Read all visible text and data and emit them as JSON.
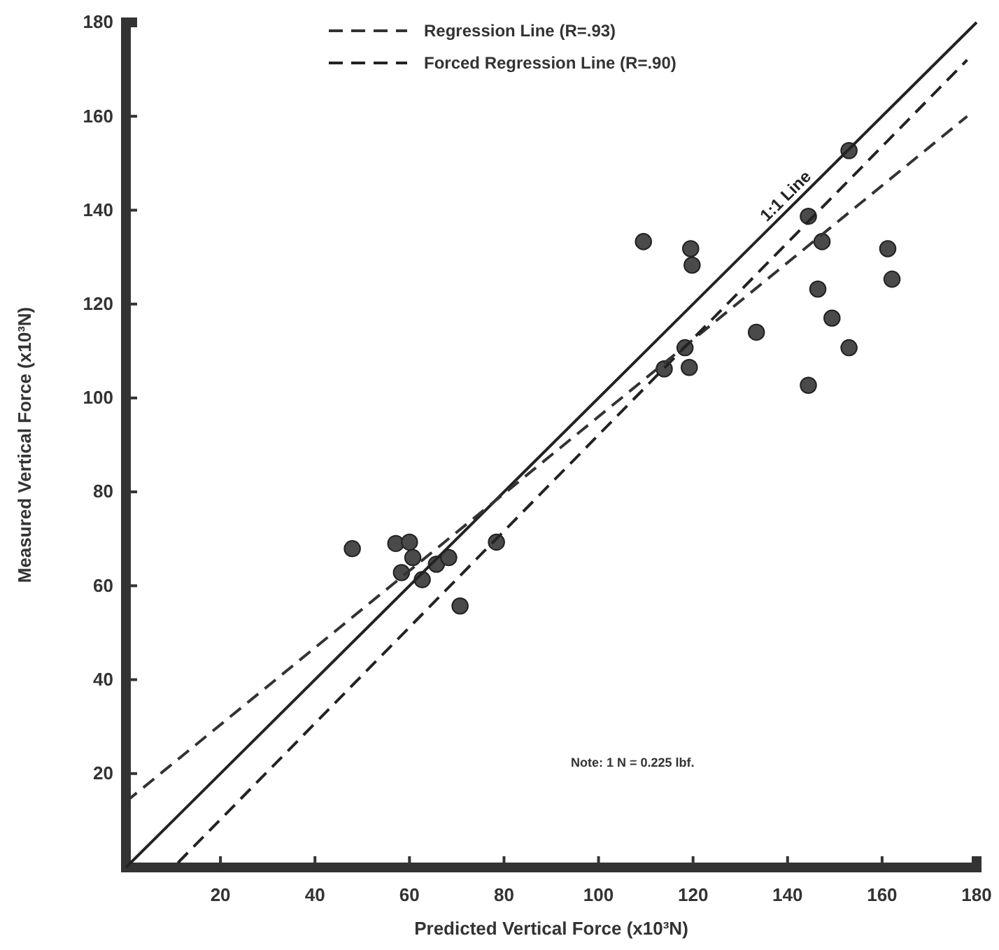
{
  "chart_data": {
    "type": "scatter",
    "xlabel": "Predicted Vertical Force (x10³N)",
    "ylabel": "Measured Vertical Force (x10³N)",
    "xlim": [
      0,
      180
    ],
    "ylim": [
      0,
      180
    ],
    "xticks": [
      20,
      40,
      60,
      80,
      100,
      120,
      140,
      160,
      180
    ],
    "yticks": [
      20,
      40,
      60,
      80,
      100,
      120,
      140,
      160,
      180
    ],
    "grid": false,
    "legend": "top",
    "annotations": [
      "Note: 1 N = 0.225 lbf."
    ],
    "series": [
      {
        "marker": "circle",
        "color": "#4a4a4a",
        "x": [
          109.5,
          119.5,
          119.8,
          153,
          144.4,
          147.3,
          161.2,
          162.1,
          146.4,
          149.4,
          133.4,
          153,
          144.4,
          118.3,
          119.2,
          113.9,
          47.9,
          57.1,
          60,
          60.7,
          58.3,
          62.7,
          65.7,
          68.3,
          70.7,
          78.4
        ],
        "values": [
          133.3,
          131.8,
          128.3,
          152.7,
          138.7,
          133.3,
          131.8,
          125.3,
          123.2,
          117,
          114,
          110.7,
          102.7,
          110.7,
          106.5,
          106.2,
          67.9,
          69,
          69.3,
          66,
          62.8,
          61.3,
          64.6,
          66,
          55.7,
          69.3
        ]
      },
      {
        "type": "line",
        "name": "1:1 Line",
        "color": "#222222",
        "line_style": "solid",
        "x": [
          0,
          180
        ],
        "values": [
          0,
          180
        ]
      },
      {
        "type": "line",
        "name": "Regression Line (R=.93)",
        "color": "#333333",
        "line_style": "dashed",
        "x": [
          0,
          178
        ],
        "values": [
          14,
          160
        ]
      },
      {
        "type": "line",
        "name": "Forced Regression Line (R=.90)",
        "color": "#222222",
        "line_style": "dashed",
        "x": [
          11,
          178
        ],
        "values": [
          1,
          172
        ]
      }
    ]
  }
}
